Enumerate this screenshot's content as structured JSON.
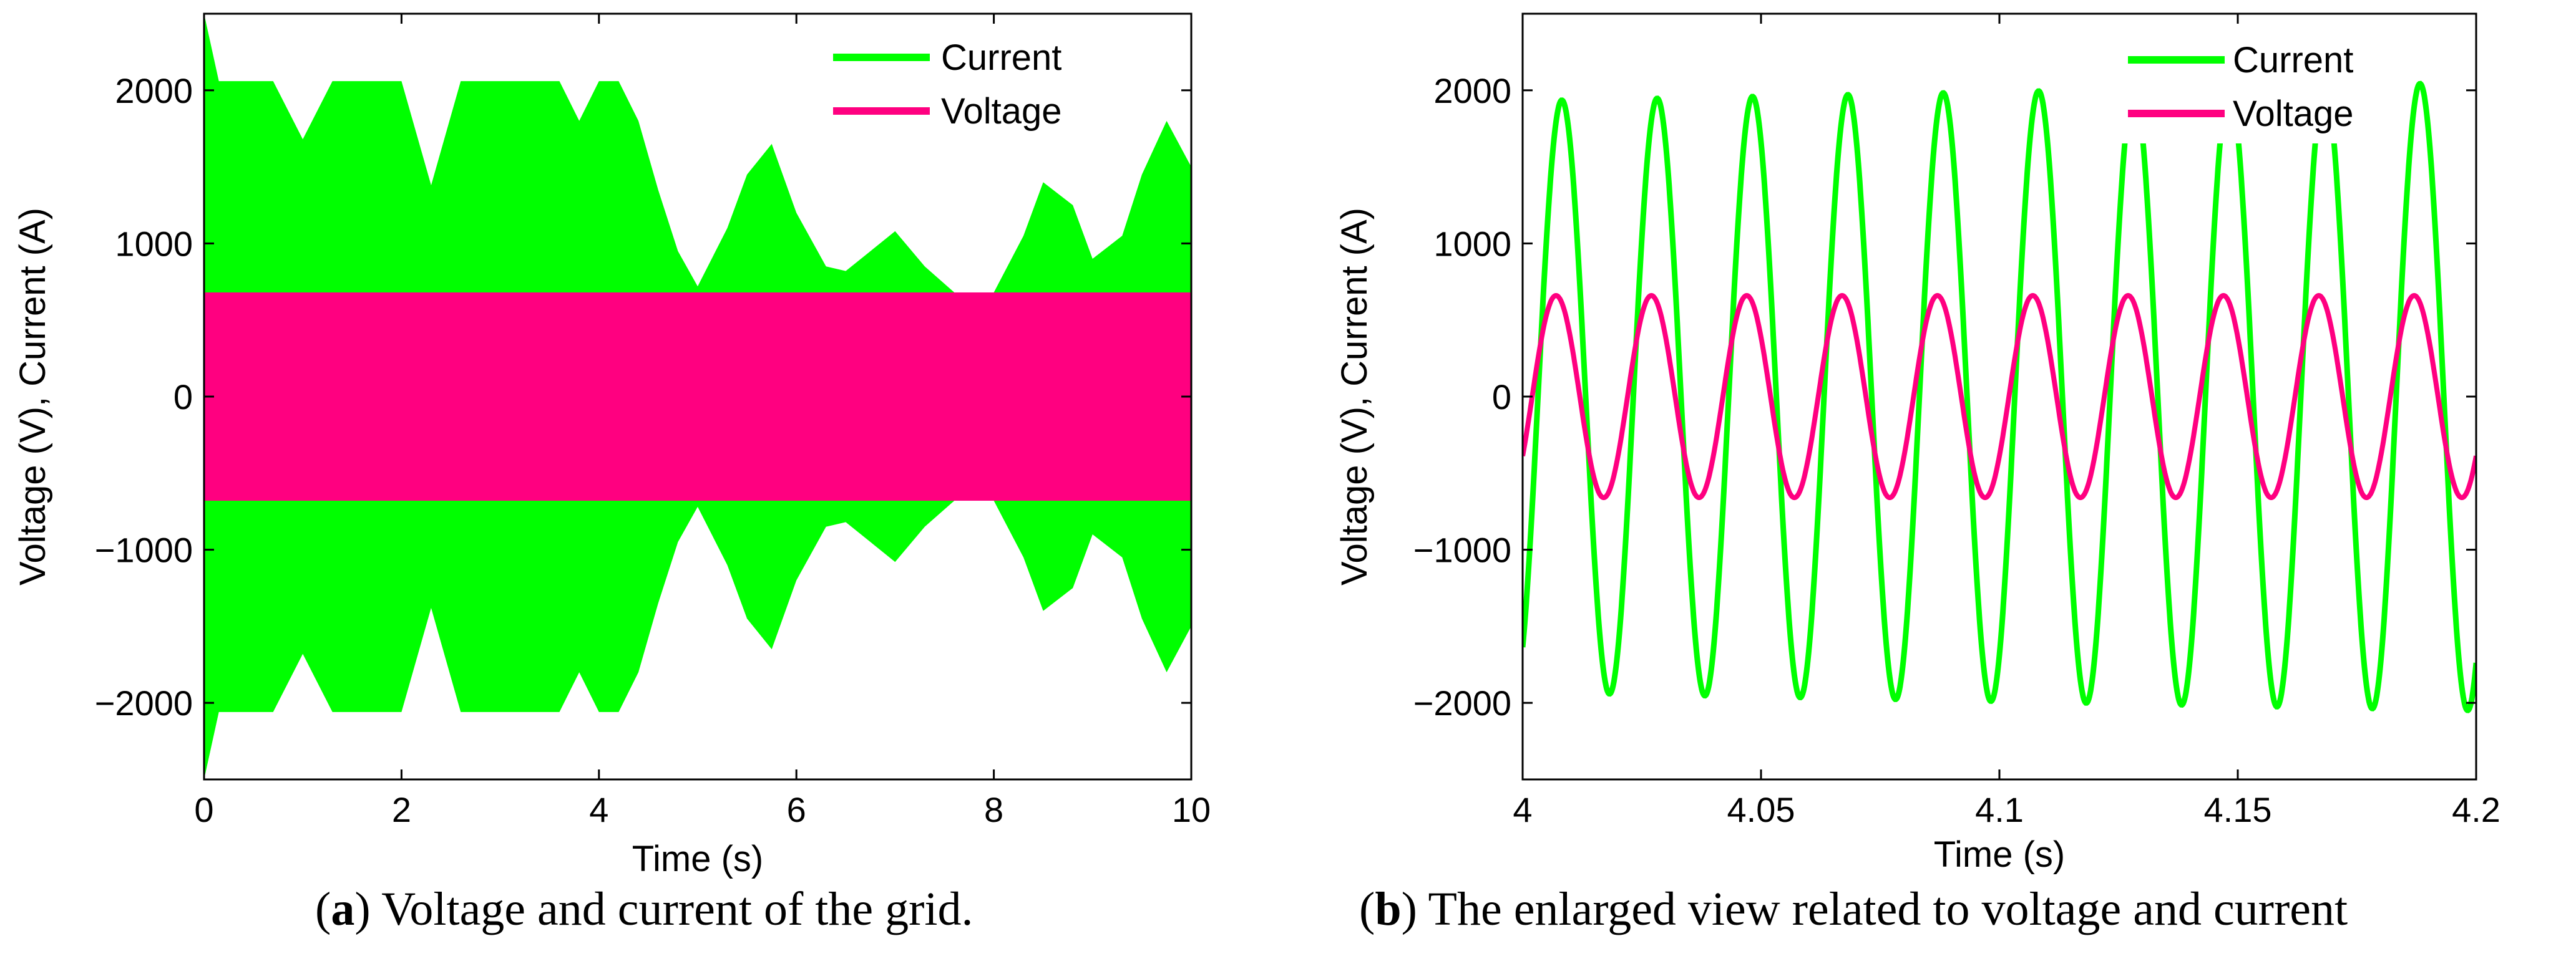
{
  "colors": {
    "current": "#00ff00",
    "voltage": "#ff0080"
  },
  "chart_data": [
    {
      "id": "a",
      "type": "line",
      "caption_letter": "a",
      "caption_text": "Voltage and current of the grid.",
      "xlabel": "Time (s)",
      "ylabel": "Voltage (V), Current (A)",
      "xlim": [
        0,
        10
      ],
      "ylim": [
        -2500,
        2500
      ],
      "xticks": [
        0,
        2,
        4,
        6,
        8,
        10
      ],
      "xtick_labels": [
        "0",
        "2",
        "4",
        "6",
        "8",
        "10"
      ],
      "yticks": [
        -2000,
        -1000,
        0,
        1000,
        2000
      ],
      "ytick_labels": [
        "−2000",
        "−1000",
        "0",
        "1000",
        "2000"
      ],
      "legend_position": "top-right",
      "series": [
        {
          "name": "Current",
          "kind": "envelope",
          "time": [
            0,
            0.15,
            0.3,
            0.5,
            0.7,
            1.0,
            1.3,
            1.7,
            2.0,
            2.3,
            2.6,
            3.0,
            3.3,
            3.6,
            3.8,
            4.0,
            4.2,
            4.4,
            4.6,
            4.8,
            5.0,
            5.3,
            5.5,
            5.75,
            6.0,
            6.3,
            6.5,
            6.75,
            7.0,
            7.3,
            7.6,
            8.0,
            8.3,
            8.5,
            8.8,
            9.0,
            9.3,
            9.5,
            9.75,
            10.0
          ],
          "amplitude": [
            2500,
            2060,
            2060,
            2060,
            2060,
            1680,
            2060,
            2060,
            2060,
            1380,
            2060,
            2060,
            2060,
            2060,
            1800,
            2060,
            2060,
            1800,
            1350,
            950,
            720,
            1100,
            1450,
            1650,
            1200,
            850,
            820,
            950,
            1080,
            850,
            680,
            680,
            1050,
            1400,
            1250,
            900,
            1050,
            1450,
            1800,
            1500
          ]
        },
        {
          "name": "Voltage",
          "kind": "band",
          "amplitude": 680
        }
      ]
    },
    {
      "id": "b",
      "type": "line",
      "caption_letter": "b",
      "caption_text": "The enlarged view related to voltage and current",
      "xlabel": "Time (s)",
      "ylabel": "Voltage (V), Current (A)",
      "xlim": [
        4,
        4.2
      ],
      "ylim": [
        -2500,
        2500
      ],
      "xticks": [
        4,
        4.05,
        4.1,
        4.15,
        4.2
      ],
      "xtick_labels": [
        "4",
        "4.05",
        "4.1",
        "4.15",
        "4.2"
      ],
      "yticks": [
        -2000,
        -1000,
        0,
        1000,
        2000
      ],
      "ytick_labels": [
        "−2000",
        "−1000",
        "0",
        "1000",
        "2000"
      ],
      "legend_position": "top-right",
      "series": [
        {
          "name": "Current",
          "kind": "sine",
          "frequency_hz": 50,
          "amplitude_start": 1930,
          "amplitude_end": 2050,
          "phase_deg": -58
        },
        {
          "name": "Voltage",
          "kind": "sine",
          "frequency_hz": 50,
          "amplitude": 660,
          "phase_deg": -36
        }
      ]
    }
  ]
}
